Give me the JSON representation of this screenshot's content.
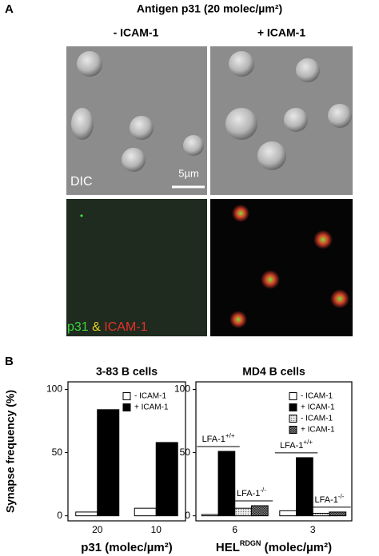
{
  "panel_a": {
    "label": "A",
    "title": "Antigen p31 (20 molec/µm²)",
    "columns": [
      "- ICAM-1",
      "+ ICAM-1"
    ],
    "dic_label": "DIC",
    "scale_bar": "5µm",
    "stain_label": [
      "p31",
      "&",
      "ICAM-1"
    ],
    "stain_colors": [
      "#3fd33f",
      "#e8d21a",
      "#e8302a"
    ]
  },
  "panel_b": {
    "label": "B",
    "y_label": "Synapse frequency (%)"
  },
  "chart_data": [
    {
      "type": "bar",
      "title": "3-83 B cells",
      "categories": [
        "20",
        "10"
      ],
      "x_label": "p31 (molec/µm²)",
      "series": [
        {
          "name": "- ICAM-1",
          "color": "#ffffff",
          "values": [
            3,
            6
          ]
        },
        {
          "name": "+ ICAM-1",
          "color": "#000000",
          "values": [
            84,
            58
          ]
        }
      ],
      "ylim": [
        -4,
        106
      ],
      "yticks": [
        0,
        50,
        100
      ],
      "legend": "upper right"
    },
    {
      "type": "bar",
      "title": "MD4 B cells",
      "categories": [
        "6",
        "3"
      ],
      "x_label": "HEL",
      "x_label_sup": "RDGN",
      "x_label_suffix": " (molec/µm²)",
      "series": [
        {
          "name": "- ICAM-1",
          "color": "#ffffff",
          "values": [
            1,
            4
          ]
        },
        {
          "name": "+ ICAM-1",
          "color": "#000000",
          "values": [
            51,
            46
          ]
        },
        {
          "name": "- ICAM-1",
          "color": "#cccccc",
          "pattern": "dots",
          "values": [
            6,
            2
          ]
        },
        {
          "name": "+ ICAM-1",
          "color": "#555555",
          "pattern": "hatch",
          "values": [
            8,
            3
          ]
        }
      ],
      "annotations": [
        {
          "text": "LFA-1",
          "sup": "+/+"
        },
        {
          "text": "LFA-1",
          "sup": "-/-"
        }
      ],
      "ylim": [
        -4,
        106
      ],
      "yticks": [
        0,
        50,
        100
      ],
      "legend": "upper right"
    }
  ]
}
